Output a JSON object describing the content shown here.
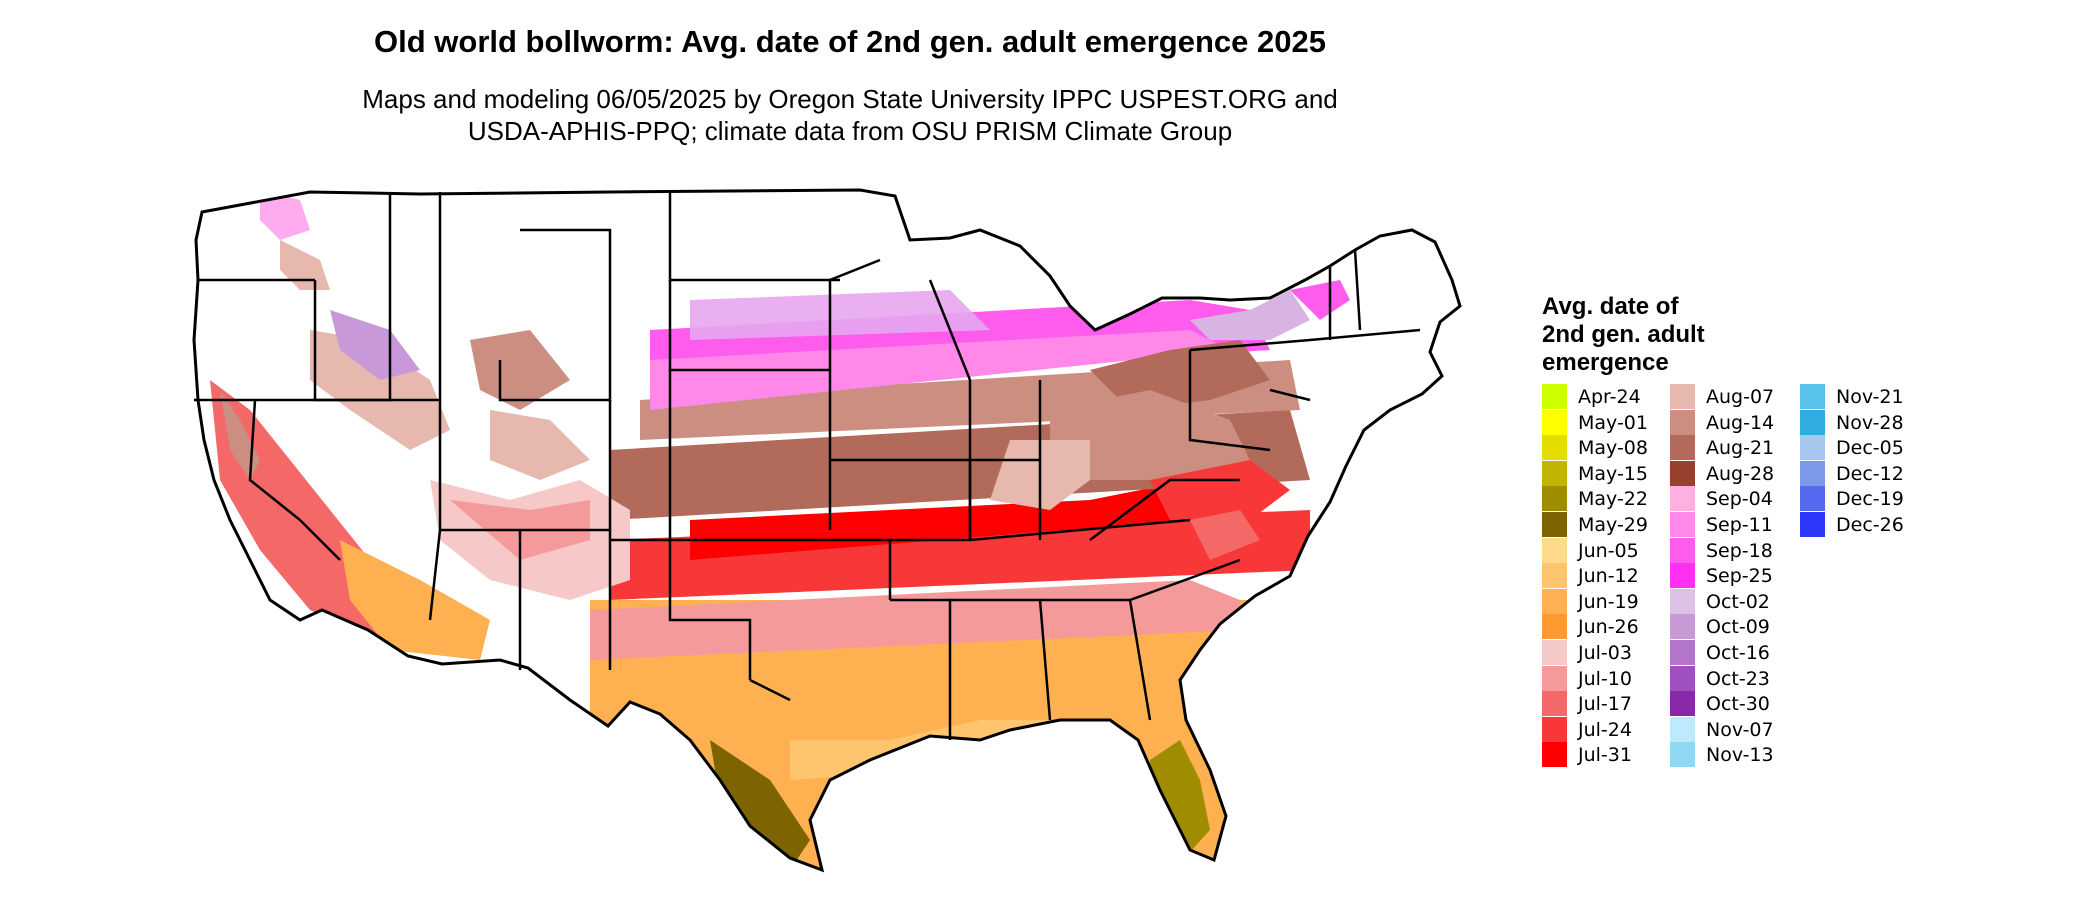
{
  "map": {
    "title": "Old world bollworm: Avg. date of 2nd gen. adult emergence 2025",
    "subtitle_line1": "Maps and modeling 06/05/2025 by Oregon State University IPPC USPEST.ORG and",
    "subtitle_line2": "USDA-APHIS-PPQ; climate data from OSU PRISM Climate Group",
    "region": "Conterminous United States with state boundaries",
    "legend": {
      "title_lines": [
        "Avg. date of",
        "2nd gen. adult",
        "emergence"
      ],
      "columns": [
        [
          {
            "label": "Apr-24",
            "color": "#CCFF00"
          },
          {
            "label": "May-01",
            "color": "#FFFF00"
          },
          {
            "label": "May-08",
            "color": "#E5DC00"
          },
          {
            "label": "May-15",
            "color": "#C2B400"
          },
          {
            "label": "May-22",
            "color": "#A08C00"
          },
          {
            "label": "May-29",
            "color": "#7D6400"
          },
          {
            "label": "Jun-05",
            "color": "#FFD98C"
          },
          {
            "label": "Jun-12",
            "color": "#FFC56E"
          },
          {
            "label": "Jun-19",
            "color": "#FFB050"
          },
          {
            "label": "Jun-26",
            "color": "#FF9A30"
          },
          {
            "label": "Jul-03",
            "color": "#F6C8C8"
          },
          {
            "label": "Jul-10",
            "color": "#F49A9A"
          },
          {
            "label": "Jul-17",
            "color": "#F46868"
          },
          {
            "label": "Jul-24",
            "color": "#F83838"
          },
          {
            "label": "Jul-31",
            "color": "#FF0000"
          }
        ],
        [
          {
            "label": "Aug-07",
            "color": "#E6B8AE"
          },
          {
            "label": "Aug-14",
            "color": "#CC8E80"
          },
          {
            "label": "Aug-21",
            "color": "#B26A5A"
          },
          {
            "label": "Aug-28",
            "color": "#98402E"
          },
          {
            "label": "Sep-04",
            "color": "#FFB0E0"
          },
          {
            "label": "Sep-11",
            "color": "#FF88E8"
          },
          {
            "label": "Sep-18",
            "color": "#FF5CEE"
          },
          {
            "label": "Sep-25",
            "color": "#FF30F4"
          },
          {
            "label": "Oct-02",
            "color": "#DEC0E6"
          },
          {
            "label": "Oct-09",
            "color": "#C898D8"
          },
          {
            "label": "Oct-16",
            "color": "#B474CC"
          },
          {
            "label": "Oct-23",
            "color": "#A050BE"
          },
          {
            "label": "Oct-30",
            "color": "#8A28AA"
          },
          {
            "label": "Nov-07",
            "color": "#BDEAFF"
          },
          {
            "label": "Nov-13",
            "color": "#8ED8F4"
          }
        ],
        [
          {
            "label": "Nov-21",
            "color": "#58C4EC"
          },
          {
            "label": "Nov-28",
            "color": "#30ACE0"
          },
          {
            "label": "Dec-05",
            "color": "#A6C8EC"
          },
          {
            "label": "Dec-12",
            "color": "#7C98E8"
          },
          {
            "label": "Dec-19",
            "color": "#5468F0"
          },
          {
            "label": "Dec-26",
            "color": "#2C38FA"
          }
        ]
      ]
    }
  }
}
